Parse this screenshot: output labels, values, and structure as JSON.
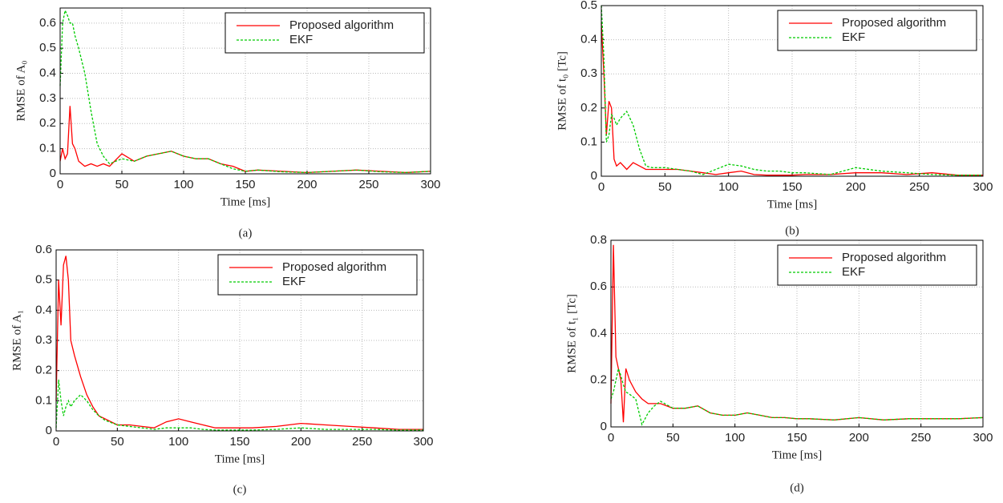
{
  "chart_data": [
    {
      "type": "line",
      "caption": "(a)",
      "x_label": "Time [ms]",
      "y_label": "RMSE of A₀",
      "x": [
        0,
        2,
        4,
        6,
        8,
        10,
        12,
        15,
        20,
        25,
        30,
        35,
        40,
        50,
        60,
        70,
        80,
        90,
        100,
        110,
        120,
        130,
        140,
        150,
        160,
        180,
        200,
        220,
        240,
        260,
        280,
        300
      ],
      "series": [
        {
          "name": "Proposed algorithm",
          "color": "#ff0000",
          "dashed": false,
          "values": [
            0.05,
            0.1,
            0.06,
            0.08,
            0.27,
            0.12,
            0.1,
            0.05,
            0.03,
            0.04,
            0.03,
            0.04,
            0.03,
            0.08,
            0.05,
            0.07,
            0.08,
            0.09,
            0.07,
            0.06,
            0.06,
            0.04,
            0.03,
            0.01,
            0.015,
            0.01,
            0.005,
            0.01,
            0.015,
            0.01,
            0.005,
            0.01
          ]
        },
        {
          "name": "EKF",
          "color": "#00cc00",
          "dashed": true,
          "values": [
            0.35,
            0.6,
            0.65,
            0.63,
            0.6,
            0.6,
            0.55,
            0.5,
            0.4,
            0.25,
            0.12,
            0.07,
            0.04,
            0.06,
            0.05,
            0.07,
            0.08,
            0.09,
            0.07,
            0.06,
            0.06,
            0.04,
            0.02,
            0.01,
            0.015,
            0.008,
            0.005,
            0.01,
            0.015,
            0.008,
            0.005,
            0.01
          ]
        }
      ],
      "xlim": [
        0,
        300
      ],
      "xticks": [
        0,
        50,
        100,
        150,
        200,
        250,
        300
      ],
      "ylim": [
        0,
        0.66
      ],
      "yticks": [
        0,
        0.1,
        0.2,
        0.3,
        0.4,
        0.5,
        0.6
      ],
      "grid": true,
      "legend": "upper right"
    },
    {
      "type": "line",
      "caption": "(b)",
      "x_label": "Time [ms]",
      "y_label": "RMSE of t₀ [Tc]",
      "x": [
        0,
        2,
        4,
        6,
        8,
        10,
        12,
        15,
        20,
        25,
        30,
        35,
        40,
        50,
        60,
        70,
        80,
        90,
        100,
        110,
        120,
        130,
        140,
        150,
        160,
        180,
        200,
        220,
        240,
        260,
        280,
        300
      ],
      "series": [
        {
          "name": "Proposed algorithm",
          "color": "#ff0000",
          "dashed": false,
          "values": [
            0.45,
            0.3,
            0.12,
            0.22,
            0.2,
            0.05,
            0.03,
            0.04,
            0.02,
            0.04,
            0.03,
            0.02,
            0.02,
            0.02,
            0.02,
            0.015,
            0.01,
            0.005,
            0.01,
            0.015,
            0.005,
            0.003,
            0.003,
            0.003,
            0.005,
            0.005,
            0.01,
            0.01,
            0.005,
            0.01,
            0.003,
            0.003
          ]
        },
        {
          "name": "EKF",
          "color": "#00cc00",
          "dashed": true,
          "values": [
            0.5,
            0.35,
            0.1,
            0.12,
            0.18,
            0.17,
            0.15,
            0.17,
            0.19,
            0.15,
            0.08,
            0.03,
            0.025,
            0.025,
            0.02,
            0.015,
            0.005,
            0.02,
            0.035,
            0.03,
            0.02,
            0.015,
            0.015,
            0.01,
            0.01,
            0.005,
            0.025,
            0.015,
            0.01,
            0.005,
            0.003,
            0.003
          ]
        }
      ],
      "xlim": [
        0,
        300
      ],
      "xticks": [
        0,
        50,
        100,
        150,
        200,
        250,
        300
      ],
      "ylim": [
        0,
        0.5
      ],
      "yticks": [
        0,
        0.1,
        0.2,
        0.3,
        0.4,
        0.5
      ],
      "grid": true,
      "legend": "upper right"
    },
    {
      "type": "line",
      "caption": "(c)",
      "x_label": "Time [ms]",
      "y_label": "RMSE of A₁",
      "x": [
        0,
        2,
        4,
        6,
        8,
        10,
        12,
        15,
        20,
        25,
        30,
        35,
        40,
        50,
        60,
        70,
        80,
        90,
        100,
        110,
        120,
        130,
        140,
        150,
        160,
        180,
        200,
        220,
        240,
        260,
        280,
        300
      ],
      "series": [
        {
          "name": "Proposed algorithm",
          "color": "#ff0000",
          "dashed": false,
          "values": [
            0.1,
            0.5,
            0.35,
            0.55,
            0.58,
            0.5,
            0.3,
            0.25,
            0.18,
            0.12,
            0.08,
            0.05,
            0.04,
            0.02,
            0.02,
            0.015,
            0.01,
            0.03,
            0.04,
            0.03,
            0.02,
            0.01,
            0.01,
            0.01,
            0.01,
            0.015,
            0.025,
            0.02,
            0.015,
            0.01,
            0.005,
            0.005
          ]
        },
        {
          "name": "EKF",
          "color": "#00cc00",
          "dashed": true,
          "values": [
            0.01,
            0.17,
            0.1,
            0.05,
            0.08,
            0.1,
            0.08,
            0.1,
            0.12,
            0.1,
            0.07,
            0.05,
            0.035,
            0.02,
            0.015,
            0.01,
            0.005,
            0.01,
            0.01,
            0.01,
            0.005,
            0.003,
            0.003,
            0.003,
            0.003,
            0.005,
            0.01,
            0.005,
            0.005,
            0.005,
            0.003,
            0.003
          ]
        }
      ],
      "xlim": [
        0,
        300
      ],
      "xticks": [
        0,
        50,
        100,
        150,
        200,
        250,
        300
      ],
      "ylim": [
        0,
        0.6
      ],
      "yticks": [
        0,
        0.1,
        0.2,
        0.3,
        0.4,
        0.5,
        0.6
      ],
      "grid": true,
      "legend": "upper right"
    },
    {
      "type": "line",
      "caption": "(d)",
      "x_label": "Time [ms]",
      "y_label": "RMSE of t₁ [Tc]",
      "x": [
        0,
        2,
        4,
        6,
        8,
        10,
        12,
        15,
        20,
        25,
        30,
        35,
        40,
        50,
        60,
        70,
        80,
        90,
        100,
        110,
        120,
        130,
        140,
        150,
        160,
        180,
        200,
        220,
        240,
        260,
        280,
        300
      ],
      "series": [
        {
          "name": "Proposed algorithm",
          "color": "#ff0000",
          "dashed": false,
          "values": [
            0.1,
            0.78,
            0.3,
            0.25,
            0.2,
            0.02,
            0.25,
            0.2,
            0.15,
            0.12,
            0.1,
            0.1,
            0.1,
            0.08,
            0.08,
            0.09,
            0.06,
            0.05,
            0.05,
            0.06,
            0.05,
            0.04,
            0.04,
            0.035,
            0.035,
            0.03,
            0.04,
            0.03,
            0.035,
            0.035,
            0.035,
            0.04
          ]
        },
        {
          "name": "EKF",
          "color": "#00cc00",
          "dashed": true,
          "values": [
            0.12,
            0.15,
            0.2,
            0.25,
            0.22,
            0.18,
            0.15,
            0.14,
            0.12,
            0.01,
            0.06,
            0.09,
            0.11,
            0.08,
            0.08,
            0.09,
            0.06,
            0.05,
            0.05,
            0.06,
            0.05,
            0.04,
            0.04,
            0.035,
            0.035,
            0.03,
            0.04,
            0.03,
            0.035,
            0.035,
            0.035,
            0.04
          ]
        }
      ],
      "xlim": [
        0,
        300
      ],
      "xticks": [
        0,
        50,
        100,
        150,
        200,
        250,
        300
      ],
      "ylim": [
        0,
        0.8
      ],
      "yticks": [
        0,
        0.2,
        0.4,
        0.6,
        0.8
      ],
      "grid": true,
      "legend": "upper right"
    }
  ]
}
